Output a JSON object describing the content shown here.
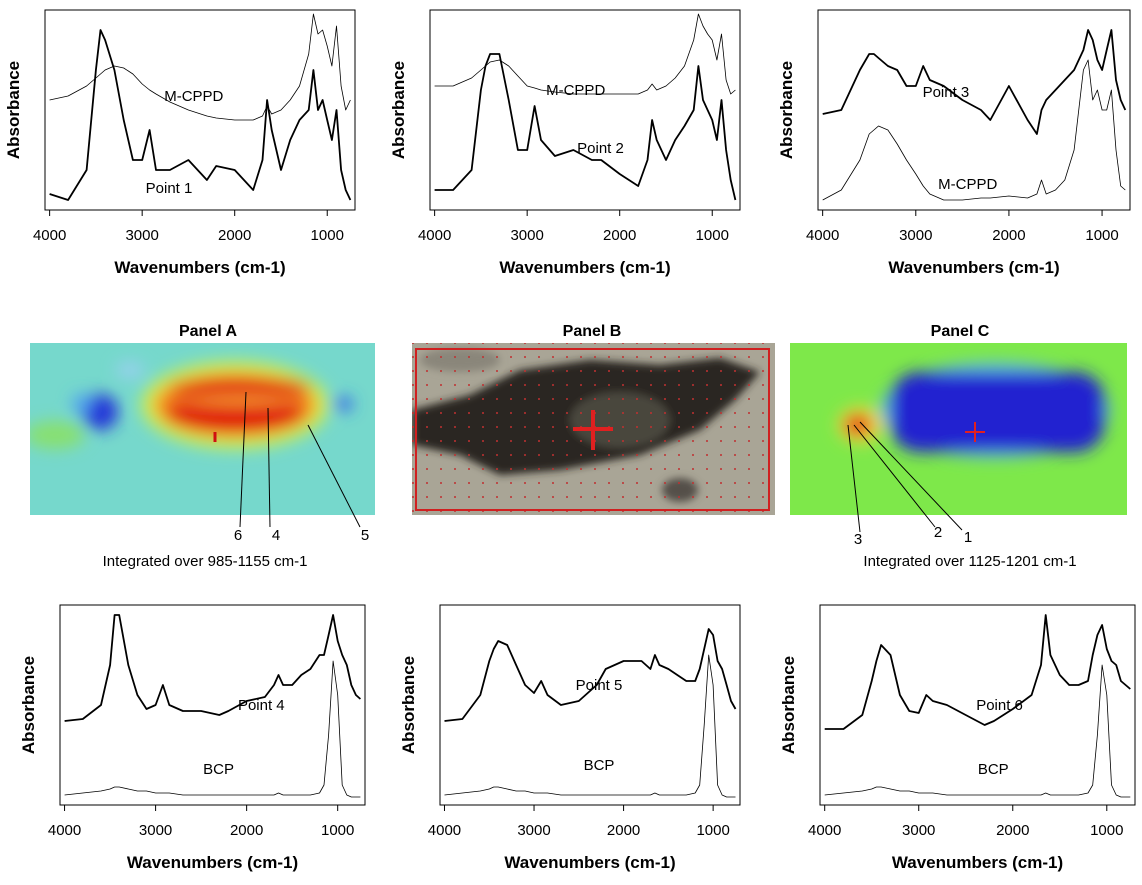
{
  "chart_data": [
    {
      "type": "line",
      "xlabel": "Wavenumbers (cm-1)",
      "ylabel": "Absorbance",
      "xlim": [
        4050,
        700
      ],
      "xticks": [
        4000,
        3000,
        2000,
        1000
      ],
      "ylim": [
        0,
        1
      ],
      "x": [
        4000,
        3800,
        3600,
        3500,
        3450,
        3400,
        3300,
        3200,
        3100,
        3000,
        2920,
        2850,
        2700,
        2500,
        2300,
        2200,
        2000,
        1800,
        1700,
        1650,
        1600,
        1500,
        1400,
        1300,
        1200,
        1150,
        1100,
        1050,
        1000,
        950,
        900,
        850,
        800,
        750
      ],
      "series": [
        {
          "name": "M-CPPD",
          "color": "#000000",
          "values": [
            0.55,
            0.57,
            0.62,
            0.66,
            0.68,
            0.7,
            0.72,
            0.71,
            0.68,
            0.63,
            0.6,
            0.58,
            0.54,
            0.5,
            0.47,
            0.46,
            0.45,
            0.45,
            0.47,
            0.52,
            0.48,
            0.5,
            0.55,
            0.62,
            0.78,
            0.98,
            0.88,
            0.9,
            0.82,
            0.72,
            0.92,
            0.62,
            0.5,
            0.55
          ]
        },
        {
          "name": "Point 1",
          "color": "#000000",
          "values": [
            0.08,
            0.05,
            0.2,
            0.7,
            0.9,
            0.85,
            0.7,
            0.45,
            0.25,
            0.25,
            0.4,
            0.2,
            0.2,
            0.25,
            0.15,
            0.22,
            0.2,
            0.1,
            0.25,
            0.55,
            0.4,
            0.2,
            0.35,
            0.45,
            0.5,
            0.7,
            0.5,
            0.55,
            0.45,
            0.35,
            0.5,
            0.2,
            0.1,
            0.05
          ]
        }
      ]
    },
    {
      "type": "line",
      "xlabel": "Wavenumbers (cm-1)",
      "ylabel": "Absorbance",
      "xlim": [
        4050,
        700
      ],
      "xticks": [
        4000,
        3000,
        2000,
        1000
      ],
      "ylim": [
        0,
        1
      ],
      "x": [
        4000,
        3800,
        3600,
        3500,
        3450,
        3400,
        3300,
        3200,
        3100,
        3000,
        2920,
        2850,
        2700,
        2500,
        2300,
        2200,
        2000,
        1800,
        1700,
        1650,
        1600,
        1500,
        1400,
        1300,
        1200,
        1150,
        1100,
        1050,
        1000,
        950,
        900,
        850,
        800,
        750
      ],
      "series": [
        {
          "name": "M-CPPD",
          "color": "#000000",
          "values": [
            0.62,
            0.62,
            0.66,
            0.7,
            0.72,
            0.74,
            0.75,
            0.72,
            0.67,
            0.62,
            0.61,
            0.6,
            0.59,
            0.58,
            0.58,
            0.58,
            0.58,
            0.58,
            0.6,
            0.63,
            0.6,
            0.62,
            0.66,
            0.72,
            0.85,
            0.98,
            0.92,
            0.88,
            0.85,
            0.75,
            0.88,
            0.65,
            0.58,
            0.6
          ]
        },
        {
          "name": "Point 2",
          "color": "#000000",
          "values": [
            0.1,
            0.1,
            0.2,
            0.6,
            0.72,
            0.78,
            0.78,
            0.55,
            0.3,
            0.3,
            0.52,
            0.35,
            0.27,
            0.3,
            0.25,
            0.25,
            0.18,
            0.12,
            0.25,
            0.45,
            0.35,
            0.25,
            0.35,
            0.42,
            0.5,
            0.72,
            0.55,
            0.5,
            0.45,
            0.35,
            0.55,
            0.3,
            0.15,
            0.05
          ]
        }
      ]
    },
    {
      "type": "line",
      "xlabel": "Wavenumbers (cm-1)",
      "ylabel": "Absorbance",
      "xlim": [
        4050,
        700
      ],
      "xticks": [
        4000,
        3000,
        2000,
        1000
      ],
      "ylim": [
        0,
        1
      ],
      "x": [
        4000,
        3800,
        3600,
        3500,
        3450,
        3400,
        3300,
        3200,
        3100,
        3000,
        2920,
        2850,
        2700,
        2500,
        2300,
        2200,
        2000,
        1800,
        1700,
        1650,
        1600,
        1500,
        1400,
        1300,
        1200,
        1150,
        1100,
        1050,
        1000,
        950,
        900,
        850,
        800,
        750
      ],
      "series": [
        {
          "name": "Point 3",
          "color": "#000000",
          "values": [
            0.48,
            0.5,
            0.7,
            0.78,
            0.78,
            0.76,
            0.72,
            0.7,
            0.62,
            0.62,
            0.72,
            0.65,
            0.62,
            0.55,
            0.5,
            0.45,
            0.62,
            0.45,
            0.38,
            0.5,
            0.55,
            0.6,
            0.65,
            0.7,
            0.8,
            0.9,
            0.85,
            0.75,
            0.7,
            0.8,
            0.9,
            0.65,
            0.55,
            0.5
          ]
        },
        {
          "name": "M-CPPD",
          "color": "#000000",
          "values": [
            0.05,
            0.1,
            0.25,
            0.38,
            0.4,
            0.42,
            0.4,
            0.33,
            0.25,
            0.18,
            0.12,
            0.08,
            0.05,
            0.05,
            0.06,
            0.06,
            0.07,
            0.06,
            0.08,
            0.15,
            0.08,
            0.1,
            0.15,
            0.3,
            0.7,
            0.75,
            0.55,
            0.6,
            0.5,
            0.5,
            0.6,
            0.3,
            0.12,
            0.1
          ]
        }
      ]
    },
    {
      "type": "line",
      "xlabel": "Wavenumbers (cm-1)",
      "ylabel": "Absorbance",
      "xlim": [
        4050,
        700
      ],
      "xticks": [
        4000,
        3000,
        2000,
        1000
      ],
      "ylim": [
        0,
        1
      ],
      "x": [
        4000,
        3800,
        3600,
        3500,
        3450,
        3400,
        3300,
        3200,
        3100,
        3000,
        2920,
        2850,
        2700,
        2500,
        2300,
        2200,
        2000,
        1800,
        1700,
        1650,
        1600,
        1500,
        1400,
        1300,
        1200,
        1150,
        1100,
        1050,
        1000,
        950,
        900,
        850,
        800,
        750
      ],
      "series": [
        {
          "name": "Point 4",
          "color": "#000000",
          "values": [
            0.42,
            0.43,
            0.5,
            0.7,
            0.95,
            0.95,
            0.7,
            0.55,
            0.48,
            0.5,
            0.6,
            0.5,
            0.47,
            0.47,
            0.45,
            0.47,
            0.52,
            0.54,
            0.6,
            0.65,
            0.6,
            0.6,
            0.65,
            0.68,
            0.75,
            0.75,
            0.85,
            0.95,
            0.82,
            0.75,
            0.7,
            0.6,
            0.55,
            0.53
          ]
        },
        {
          "name": "BCP",
          "color": "#000000",
          "values": [
            0.05,
            0.06,
            0.07,
            0.08,
            0.09,
            0.09,
            0.08,
            0.07,
            0.07,
            0.06,
            0.06,
            0.06,
            0.05,
            0.05,
            0.05,
            0.05,
            0.05,
            0.05,
            0.05,
            0.06,
            0.05,
            0.05,
            0.05,
            0.05,
            0.06,
            0.1,
            0.35,
            0.72,
            0.55,
            0.1,
            0.05,
            0.04,
            0.04,
            0.04
          ]
        }
      ]
    },
    {
      "type": "line",
      "xlabel": "Wavenumbers (cm-1)",
      "ylabel": "Absorbance",
      "xlim": [
        4050,
        700
      ],
      "xticks": [
        4000,
        3000,
        2000,
        1000
      ],
      "ylim": [
        0,
        1
      ],
      "x": [
        4000,
        3800,
        3600,
        3500,
        3450,
        3400,
        3300,
        3200,
        3100,
        3000,
        2920,
        2850,
        2700,
        2500,
        2300,
        2200,
        2000,
        1800,
        1700,
        1650,
        1600,
        1500,
        1400,
        1300,
        1200,
        1150,
        1100,
        1050,
        1000,
        950,
        900,
        850,
        800,
        750
      ],
      "series": [
        {
          "name": "Point 5",
          "color": "#000000",
          "values": [
            0.42,
            0.43,
            0.55,
            0.72,
            0.78,
            0.82,
            0.8,
            0.7,
            0.6,
            0.56,
            0.62,
            0.55,
            0.5,
            0.52,
            0.6,
            0.68,
            0.72,
            0.72,
            0.68,
            0.75,
            0.7,
            0.68,
            0.65,
            0.62,
            0.62,
            0.68,
            0.78,
            0.88,
            0.85,
            0.72,
            0.68,
            0.6,
            0.52,
            0.48
          ]
        },
        {
          "name": "BCP",
          "color": "#000000",
          "values": [
            0.05,
            0.06,
            0.07,
            0.08,
            0.09,
            0.09,
            0.08,
            0.07,
            0.07,
            0.06,
            0.06,
            0.06,
            0.05,
            0.05,
            0.05,
            0.05,
            0.05,
            0.05,
            0.05,
            0.06,
            0.05,
            0.05,
            0.05,
            0.05,
            0.06,
            0.1,
            0.4,
            0.75,
            0.6,
            0.1,
            0.05,
            0.04,
            0.04,
            0.04
          ]
        }
      ]
    },
    {
      "type": "line",
      "xlabel": "Wavenumbers (cm-1)",
      "ylabel": "Absorbance",
      "xlim": [
        4050,
        700
      ],
      "xticks": [
        4000,
        3000,
        2000,
        1000
      ],
      "ylim": [
        0,
        1
      ],
      "x": [
        4000,
        3800,
        3600,
        3500,
        3450,
        3400,
        3300,
        3200,
        3100,
        3000,
        2920,
        2850,
        2700,
        2500,
        2300,
        2200,
        2000,
        1800,
        1700,
        1650,
        1600,
        1500,
        1400,
        1300,
        1200,
        1150,
        1100,
        1050,
        1000,
        950,
        900,
        850,
        800,
        750
      ],
      "series": [
        {
          "name": "Point 6",
          "color": "#000000",
          "values": [
            0.38,
            0.38,
            0.45,
            0.62,
            0.72,
            0.8,
            0.75,
            0.55,
            0.47,
            0.46,
            0.55,
            0.52,
            0.5,
            0.45,
            0.4,
            0.42,
            0.48,
            0.55,
            0.7,
            0.95,
            0.75,
            0.65,
            0.6,
            0.6,
            0.62,
            0.75,
            0.85,
            0.9,
            0.78,
            0.72,
            0.7,
            0.62,
            0.6,
            0.58
          ]
        },
        {
          "name": "BCP",
          "color": "#000000",
          "values": [
            0.05,
            0.06,
            0.07,
            0.08,
            0.09,
            0.09,
            0.08,
            0.07,
            0.07,
            0.06,
            0.06,
            0.06,
            0.05,
            0.05,
            0.05,
            0.05,
            0.05,
            0.05,
            0.05,
            0.06,
            0.05,
            0.05,
            0.05,
            0.05,
            0.06,
            0.1,
            0.35,
            0.7,
            0.55,
            0.1,
            0.05,
            0.04,
            0.04,
            0.04
          ]
        }
      ]
    }
  ],
  "panels": [
    {
      "title": "Panel A",
      "callouts": [
        "6",
        "4",
        "5"
      ],
      "caption": "Integrated over 985-1155 cm-1"
    },
    {
      "title": "Panel B"
    },
    {
      "title": "Panel C",
      "callouts": [
        "3",
        "2",
        "1"
      ],
      "caption": "Integrated over 1125-1201 cm-1"
    }
  ]
}
